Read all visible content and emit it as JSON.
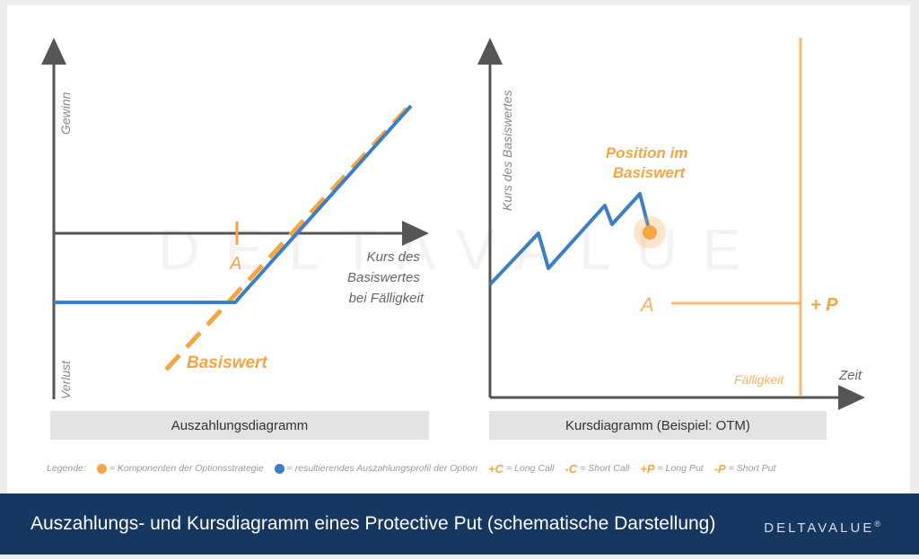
{
  "left_chart": {
    "y_axis_top": "Gewinn",
    "y_axis_bottom": "Verlust",
    "x_axis_label_lines": [
      "Kurs des",
      "Basiswertes",
      "bei Fälligkeit"
    ],
    "strike_label": "A",
    "underlying_label": "Basiswert",
    "caption": "Auszahlungsdiagramm"
  },
  "right_chart": {
    "y_axis_label": "Kurs des Basiswertes",
    "x_axis_label": "Zeit",
    "position_label_lines": [
      "Position im",
      "Basiswert"
    ],
    "strike_label": "A",
    "option_label": "+ P",
    "maturity_label": "Fälligkeit",
    "caption": "Kursdiagramm (Beispiel: OTM)"
  },
  "watermark": "DELTAVALUE",
  "legend": {
    "prefix": "Legende:",
    "orange_text": "= Komponenten der Optionsstrategie",
    "blue_text": "= resultierendes Auszahlungsprofil der Option",
    "items": [
      {
        "symbol": "+C",
        "text": "= Long Call"
      },
      {
        "symbol": "-C",
        "text": "= Short Call"
      },
      {
        "symbol": "+P",
        "text": "= Long Put"
      },
      {
        "symbol": "-P",
        "text": "= Short Put"
      }
    ]
  },
  "footer": {
    "title": "Auszahlungs- und Kursdiagramm eines Protective Put (schematische Darstellung)",
    "brand": "DELTAVALUE",
    "brand_mark": "®"
  },
  "colors": {
    "orange": "#f5a544",
    "blue": "#3d7fc4",
    "axis": "#555555",
    "navy": "#16375f"
  }
}
